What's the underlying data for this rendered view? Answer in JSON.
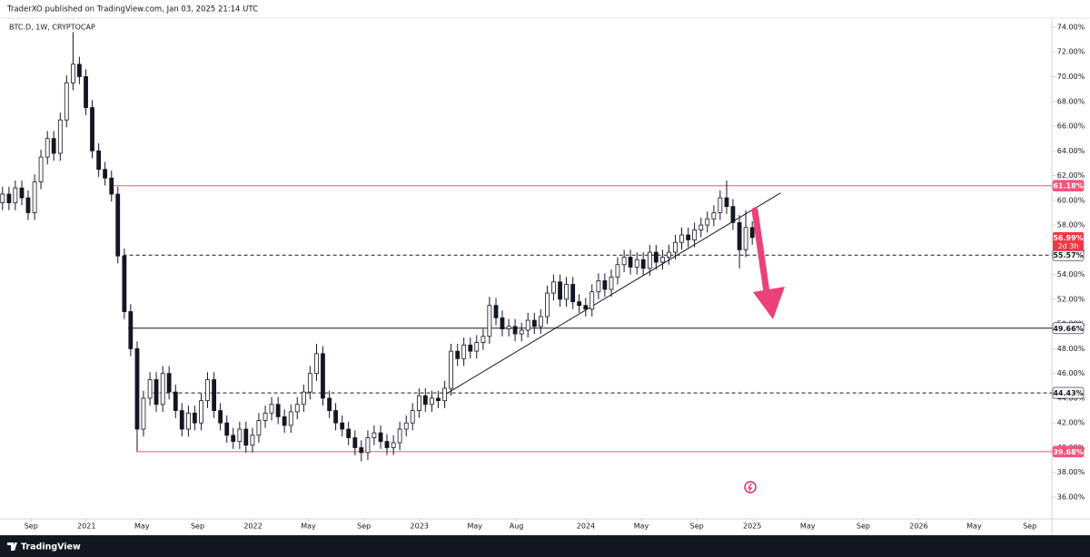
{
  "chart_data": {
    "type": "candlestick",
    "title": "TraderXO published on TradingView.com, Jan 03, 2025 21:14 UTC",
    "subtitle": "BTC.D, 1W, CRYPTOCAP",
    "brand": "TradingView",
    "grid": false,
    "up_color": "#ffffff",
    "down_color": "#131722",
    "border_color": "#131722",
    "xlim": [
      2020.48,
      2026.8
    ],
    "ylim": [
      34.24,
      74.73
    ],
    "xticks": [
      {
        "value": 2020.667,
        "label": "Sep"
      },
      2021,
      {
        "value": 2021.333,
        "label": "May"
      },
      {
        "value": 2021.667,
        "label": "Sep"
      },
      2022,
      {
        "value": 2022.333,
        "label": "May"
      },
      {
        "value": 2022.667,
        "label": "Sep"
      },
      2023,
      {
        "value": 2023.333,
        "label": "May"
      },
      {
        "value": 2023.583,
        "label": "Aug"
      },
      2024,
      {
        "value": 2024.333,
        "label": "May"
      },
      {
        "value": 2024.667,
        "label": "Sep"
      },
      2025,
      {
        "value": 2025.333,
        "label": "May"
      },
      {
        "value": 2025.667,
        "label": "Sep"
      },
      2026,
      {
        "value": 2026.333,
        "label": "May"
      },
      {
        "value": 2026.667,
        "label": "Sep"
      }
    ],
    "yticks": [
      {
        "value": 36,
        "label": "36.00%"
      },
      {
        "value": 38,
        "label": "38.00%"
      },
      {
        "value": 40,
        "label": "40.00%"
      },
      {
        "value": 42,
        "label": "42.00%"
      },
      {
        "value": 44,
        "label": "44.00%"
      },
      {
        "value": 46,
        "label": "46.00%"
      },
      {
        "value": 48,
        "label": "48.00%"
      },
      {
        "value": 50,
        "label": "50.00%"
      },
      {
        "value": 52,
        "label": "52.00%"
      },
      {
        "value": 54,
        "label": "54.00%"
      },
      {
        "value": 56,
        "label": "56.00%"
      },
      {
        "value": 58,
        "label": "58.00%"
      },
      {
        "value": 60,
        "label": "60.00%"
      },
      {
        "value": 62,
        "label": "62.00%"
      },
      {
        "value": 64,
        "label": "64.00%"
      },
      {
        "value": 66,
        "label": "66.00%"
      },
      {
        "value": 68,
        "label": "68.00%"
      },
      {
        "value": 70,
        "label": "70.00%"
      },
      {
        "value": 72,
        "label": "72.00%"
      },
      {
        "value": 74,
        "label": "74.00%"
      }
    ],
    "x": [
      2020.495,
      2020.534,
      2020.572,
      2020.611,
      2020.649,
      2020.688,
      2020.726,
      2020.765,
      2020.803,
      2020.842,
      2020.88,
      2020.919,
      2020.957,
      2020.996,
      2021.034,
      2021.073,
      2021.111,
      2021.15,
      2021.188,
      2021.227,
      2021.265,
      2021.304,
      2021.342,
      2021.381,
      2021.419,
      2021.458,
      2021.496,
      2021.535,
      2021.573,
      2021.612,
      2021.65,
      2021.689,
      2021.727,
      2021.766,
      2021.804,
      2021.843,
      2021.881,
      2021.92,
      2021.958,
      2021.997,
      2022.035,
      2022.074,
      2022.112,
      2022.151,
      2022.189,
      2022.228,
      2022.266,
      2022.305,
      2022.343,
      2022.382,
      2022.42,
      2022.459,
      2022.497,
      2022.536,
      2022.574,
      2022.613,
      2022.651,
      2022.69,
      2022.728,
      2022.767,
      2022.805,
      2022.844,
      2022.882,
      2022.921,
      2022.959,
      2022.998,
      2023.036,
      2023.075,
      2023.113,
      2023.152,
      2023.19,
      2023.229,
      2023.267,
      2023.306,
      2023.344,
      2023.383,
      2023.421,
      2023.46,
      2023.498,
      2023.537,
      2023.575,
      2023.614,
      2023.652,
      2023.691,
      2023.729,
      2023.768,
      2023.806,
      2023.845,
      2023.883,
      2023.922,
      2023.96,
      2023.999,
      2024.037,
      2024.076,
      2024.114,
      2024.153,
      2024.191,
      2024.23,
      2024.268,
      2024.307,
      2024.345,
      2024.384,
      2024.422,
      2024.461,
      2024.499,
      2024.538,
      2024.576,
      2024.615,
      2024.653,
      2024.692,
      2024.73,
      2024.769,
      2024.807,
      2024.846,
      2024.884,
      2024.923,
      2024.961,
      2025.0
    ],
    "open": [
      59.8,
      60.5,
      59.8,
      61.0,
      60.2,
      59.0,
      61.5,
      63.5,
      65.0,
      63.8,
      66.5,
      69.5,
      71.0,
      70.0,
      67.5,
      64.0,
      62.5,
      61.8,
      60.5,
      55.5,
      51.0,
      48.0,
      41.5,
      44.0,
      45.5,
      43.5,
      46.0,
      44.5,
      43.0,
      41.5,
      42.8,
      42.0,
      43.8,
      45.5,
      43.0,
      42.0,
      41.0,
      40.5,
      41.5,
      40.2,
      41.0,
      42.2,
      42.8,
      43.5,
      42.5,
      41.8,
      42.9,
      43.5,
      44.5,
      46.0,
      47.6,
      44.0,
      43.0,
      42.0,
      41.5,
      40.8,
      40.0,
      39.6,
      40.8,
      41.2,
      40.5,
      40.0,
      40.4,
      41.5,
      42.0,
      43.0,
      44.2,
      43.5,
      44.0,
      43.8,
      44.8,
      47.8,
      47.2,
      48.3,
      47.8,
      48.5,
      49.0,
      51.5,
      50.5,
      49.6,
      49.8,
      49.2,
      49.5,
      50.3,
      49.8,
      50.6,
      52.5,
      53.4,
      52.0,
      53.2,
      51.8,
      51.5,
      51.2,
      52.6,
      53.5,
      52.8,
      53.8,
      54.8,
      55.4,
      54.6,
      55.2,
      54.5,
      55.8,
      55.0,
      55.4,
      55.8,
      56.6,
      57.2,
      56.8,
      57.6,
      58.0,
      58.5,
      59.0,
      60.2,
      59.5,
      58.2,
      56.0,
      57.8
    ],
    "high": [
      61.1,
      61.1,
      61.6,
      61.6,
      60.8,
      62.1,
      64.1,
      65.6,
      65.6,
      67.1,
      70.1,
      73.6,
      71.6,
      70.6,
      68.1,
      64.6,
      63.1,
      62.4,
      61.1,
      56.1,
      51.6,
      48.6,
      44.6,
      46.1,
      46.1,
      46.6,
      46.6,
      45.1,
      43.6,
      43.4,
      43.4,
      44.4,
      46.1,
      46.1,
      43.6,
      42.6,
      41.6,
      42.1,
      42.1,
      41.6,
      42.8,
      43.4,
      44.1,
      44.1,
      43.1,
      43.5,
      44.1,
      45.1,
      46.6,
      48.4,
      48.2,
      44.6,
      43.6,
      42.6,
      42.1,
      41.4,
      40.6,
      41.4,
      41.8,
      41.8,
      41.1,
      41.0,
      42.1,
      42.6,
      43.6,
      44.8,
      44.8,
      44.6,
      44.6,
      45.4,
      48.4,
      48.4,
      48.9,
      48.9,
      49.1,
      49.6,
      52.2,
      52.1,
      51.1,
      50.4,
      50.4,
      50.1,
      50.9,
      50.9,
      51.2,
      53.1,
      54.0,
      54.0,
      53.8,
      53.8,
      52.4,
      52.1,
      53.2,
      54.1,
      54.1,
      54.4,
      55.4,
      56.0,
      56.0,
      55.8,
      55.8,
      56.4,
      56.4,
      56.0,
      56.4,
      57.2,
      57.8,
      57.8,
      58.2,
      58.6,
      59.1,
      59.6,
      60.8,
      61.6,
      60.1,
      58.8,
      59.2,
      58.3
    ],
    "low": [
      59.2,
      59.2,
      59.2,
      59.6,
      58.4,
      58.4,
      60.9,
      62.9,
      63.2,
      63.2,
      65.9,
      68.9,
      69.4,
      66.9,
      63.4,
      61.9,
      61.2,
      59.9,
      54.9,
      50.4,
      47.4,
      39.7,
      40.9,
      43.4,
      42.9,
      42.9,
      43.9,
      42.4,
      40.9,
      40.9,
      41.4,
      41.4,
      43.2,
      42.4,
      41.4,
      40.4,
      39.9,
      39.9,
      39.6,
      39.6,
      40.4,
      41.6,
      42.2,
      41.9,
      41.2,
      41.2,
      42.3,
      42.9,
      43.9,
      45.4,
      43.4,
      42.4,
      41.4,
      40.9,
      40.2,
      39.4,
      38.9,
      39.0,
      40.2,
      39.9,
      39.4,
      39.4,
      39.8,
      40.9,
      41.4,
      42.4,
      42.9,
      42.9,
      43.2,
      43.2,
      44.2,
      46.6,
      46.6,
      47.2,
      47.2,
      47.9,
      48.4,
      49.9,
      49.0,
      49.0,
      48.6,
      48.6,
      48.9,
      49.2,
      49.2,
      50.0,
      51.9,
      51.4,
      51.4,
      51.2,
      50.9,
      50.6,
      50.6,
      52.0,
      52.2,
      52.2,
      53.2,
      54.2,
      54.0,
      54.0,
      53.9,
      53.9,
      54.4,
      54.4,
      54.8,
      55.2,
      56.0,
      56.2,
      56.2,
      57.0,
      57.4,
      57.9,
      58.4,
      58.9,
      57.6,
      54.5,
      55.4,
      56.4
    ],
    "close": [
      60.5,
      59.8,
      61.0,
      60.2,
      59.0,
      61.5,
      63.5,
      65.0,
      63.8,
      66.5,
      69.5,
      71.0,
      70.0,
      67.5,
      64.0,
      62.5,
      61.8,
      60.5,
      55.5,
      51.0,
      48.0,
      41.5,
      44.0,
      45.5,
      43.5,
      46.0,
      44.5,
      43.0,
      41.5,
      42.8,
      42.0,
      43.8,
      45.5,
      43.0,
      42.0,
      41.0,
      40.5,
      41.5,
      40.2,
      41.0,
      42.2,
      42.8,
      43.5,
      42.5,
      41.8,
      42.9,
      43.5,
      44.5,
      46.0,
      47.6,
      44.0,
      43.0,
      42.0,
      41.5,
      40.8,
      40.0,
      39.6,
      40.8,
      41.2,
      40.5,
      40.0,
      40.4,
      41.5,
      42.0,
      43.0,
      44.2,
      43.5,
      44.0,
      43.8,
      44.8,
      47.8,
      47.2,
      48.3,
      47.8,
      48.5,
      49.0,
      51.5,
      50.5,
      49.6,
      49.8,
      49.2,
      49.5,
      50.3,
      49.8,
      50.6,
      52.5,
      53.4,
      52.0,
      53.2,
      51.8,
      51.5,
      51.2,
      52.6,
      53.5,
      52.8,
      53.8,
      54.8,
      55.4,
      54.6,
      55.2,
      54.5,
      55.8,
      55.0,
      55.4,
      55.8,
      56.6,
      57.2,
      56.8,
      57.6,
      58.0,
      58.5,
      59.0,
      60.2,
      59.5,
      58.2,
      56.0,
      57.8,
      56.99
    ],
    "levels": [
      {
        "value": 61.18,
        "label": "61.18%",
        "start": 2021.15,
        "color": "#f7527a",
        "style": "solid"
      },
      {
        "value": 55.57,
        "label": "55.57%",
        "start": 2021.22,
        "color": "#131722",
        "style": "dashed"
      },
      {
        "value": 49.66,
        "label": "49.66%",
        "start": 2021.25,
        "color": "#131722",
        "style": "solid"
      },
      {
        "value": 44.43,
        "label": "44.43%",
        "start": 2021.4,
        "color": "#131722",
        "style": "dashed"
      },
      {
        "value": 39.68,
        "label": "39.68%",
        "start": 2021.3,
        "color": "#f7527a",
        "style": "solid"
      }
    ],
    "last_price": {
      "value": 56.99,
      "label": "56.99%",
      "countdown": "2d 3h",
      "color": "#f23645"
    },
    "trendline": {
      "x": [
        2023.155,
        2025.17
      ],
      "y": [
        44.3,
        60.6
      ],
      "color": "#131722"
    }
  }
}
